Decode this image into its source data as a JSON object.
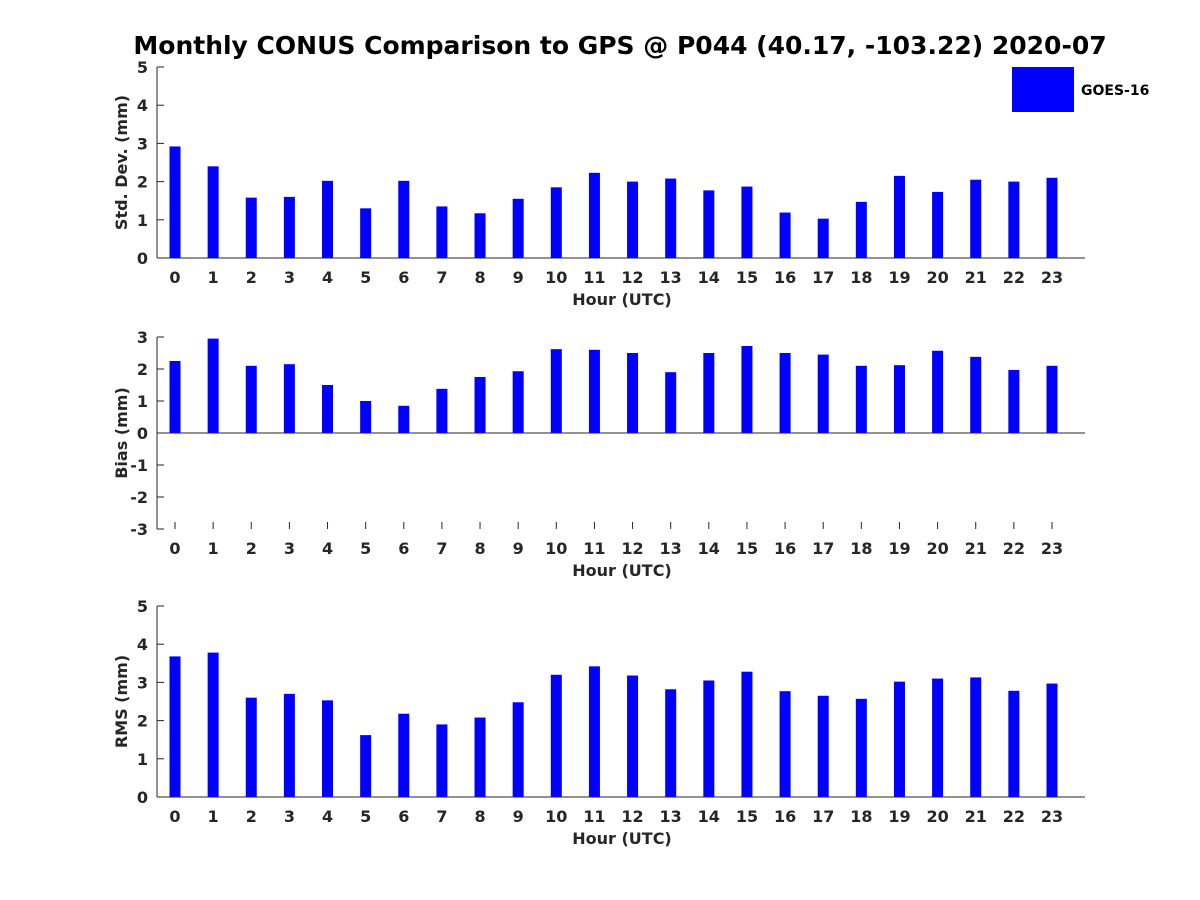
{
  "chart_data": {
    "type": "bar",
    "title": "Monthly CONUS Comparison to GPS @ P044 (40.17, -103.22) 2020-07",
    "legend": {
      "label": "GOES-16",
      "placement": "top-right"
    },
    "series_color": "#0000ff",
    "categories": [
      "0",
      "1",
      "2",
      "3",
      "4",
      "5",
      "6",
      "7",
      "8",
      "9",
      "10",
      "11",
      "12",
      "13",
      "14",
      "15",
      "16",
      "17",
      "18",
      "19",
      "20",
      "21",
      "22",
      "23"
    ],
    "panels": [
      {
        "ylabel": "Std. Dev. (mm)",
        "xlabel": "Hour (UTC)",
        "ylim": [
          0,
          5
        ],
        "yticks": [
          0,
          1,
          2,
          3,
          4,
          5
        ],
        "values": [
          2.92,
          2.4,
          1.58,
          1.6,
          2.02,
          1.3,
          2.02,
          1.35,
          1.17,
          1.55,
          1.85,
          2.23,
          2.0,
          2.08,
          1.77,
          1.87,
          1.19,
          1.03,
          1.47,
          2.15,
          1.73,
          2.05,
          2.0,
          2.1
        ]
      },
      {
        "ylabel": "Bias (mm)",
        "xlabel": "Hour (UTC)",
        "ylim": [
          -3,
          3
        ],
        "yticks": [
          -3,
          -2,
          -1,
          0,
          1,
          2,
          3
        ],
        "values": [
          2.25,
          2.95,
          2.1,
          2.15,
          1.5,
          1.0,
          0.85,
          1.38,
          1.75,
          1.93,
          2.62,
          2.6,
          2.5,
          1.9,
          2.5,
          2.72,
          2.5,
          2.45,
          2.1,
          2.12,
          2.57,
          2.38,
          1.97,
          2.1
        ]
      },
      {
        "ylabel": "RMS (mm)",
        "xlabel": "Hour (UTC)",
        "ylim": [
          0,
          5
        ],
        "yticks": [
          0,
          1,
          2,
          3,
          4,
          5
        ],
        "values": [
          3.68,
          3.78,
          2.6,
          2.7,
          2.53,
          1.62,
          2.18,
          1.9,
          2.08,
          2.48,
          3.2,
          3.42,
          3.18,
          2.82,
          3.05,
          3.28,
          2.77,
          2.65,
          2.57,
          3.02,
          3.1,
          3.13,
          2.78,
          2.97
        ]
      }
    ]
  }
}
